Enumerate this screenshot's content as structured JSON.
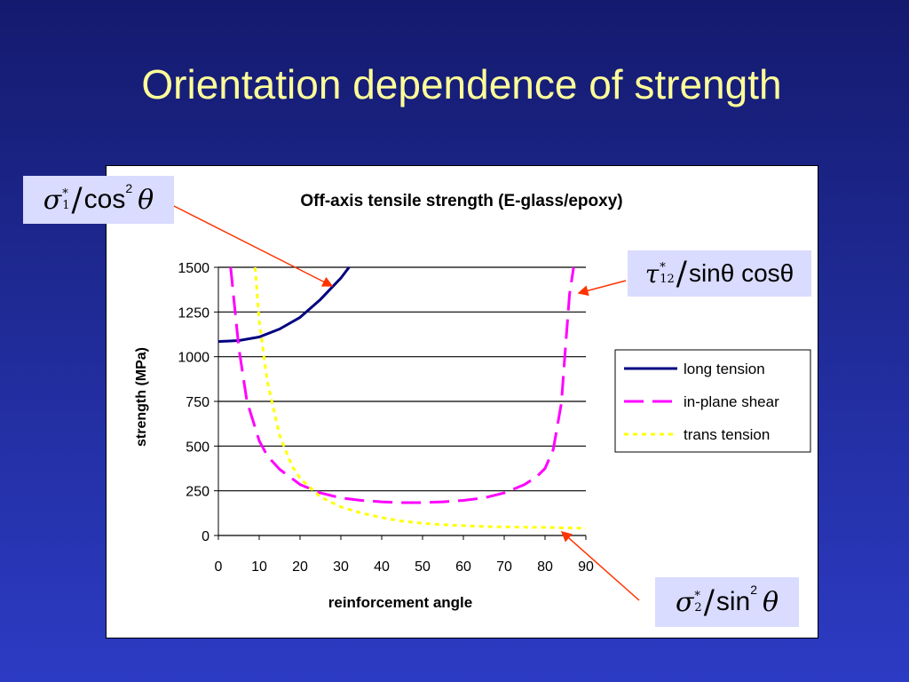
{
  "slide": {
    "title": "Orientation dependence of strength"
  },
  "formulas": {
    "long": {
      "num": "σ",
      "sub": "1",
      "sup": "*",
      "den": "cos",
      "pow": "2",
      "angle": "θ"
    },
    "shear": {
      "num": "τ",
      "sub": "12",
      "sup": "*",
      "den": "sinθ cosθ"
    },
    "trans": {
      "num": "σ",
      "sub": "2",
      "sup": "*",
      "den": "sin",
      "pow": "2",
      "angle": "θ"
    }
  },
  "chart_data": {
    "type": "line",
    "title": "Off-axis tensile strength (E-glass/epoxy)",
    "xlabel": "reinforcement angle",
    "ylabel": "strength (MPa)",
    "xlim": [
      0,
      90
    ],
    "ylim": [
      0,
      1500
    ],
    "xticks": [
      "0",
      "10",
      "20",
      "30",
      "40",
      "50",
      "60",
      "70",
      "80",
      "90"
    ],
    "yticks": [
      "0",
      "250",
      "500",
      "750",
      "1000",
      "1250",
      "1500"
    ],
    "grid": "horizontal",
    "legend_position": "right",
    "series": [
      {
        "name": "long tension",
        "color": "#000080",
        "dash": "solid",
        "x": [
          0,
          5,
          10,
          15,
          20,
          25,
          30,
          32
        ],
        "y": [
          1085,
          1090,
          1110,
          1155,
          1220,
          1320,
          1440,
          1500
        ]
      },
      {
        "name": "in-plane shear",
        "color": "#ff00ff",
        "dash": "long-dash",
        "x": [
          3,
          5,
          7,
          10,
          12,
          15,
          20,
          25,
          30,
          35,
          40,
          45,
          50,
          55,
          60,
          65,
          70,
          75,
          78,
          80,
          82,
          84,
          85,
          86,
          87
        ],
        "y": [
          1500,
          1050,
          750,
          530,
          445,
          370,
          285,
          238,
          210,
          196,
          188,
          184,
          184,
          188,
          196,
          210,
          238,
          285,
          330,
          375,
          480,
          740,
          1050,
          1350,
          1500
        ]
      },
      {
        "name": "trans tension",
        "color": "#ffff00",
        "dash": "dotted",
        "x": [
          9,
          10,
          12,
          15,
          18,
          20,
          25,
          30,
          35,
          40,
          45,
          50,
          55,
          60,
          65,
          70,
          75,
          80,
          85,
          90
        ],
        "y": [
          1500,
          1200,
          860,
          560,
          390,
          320,
          215,
          160,
          125,
          100,
          80,
          68,
          60,
          55,
          50,
          48,
          46,
          45,
          42,
          40
        ]
      }
    ]
  }
}
